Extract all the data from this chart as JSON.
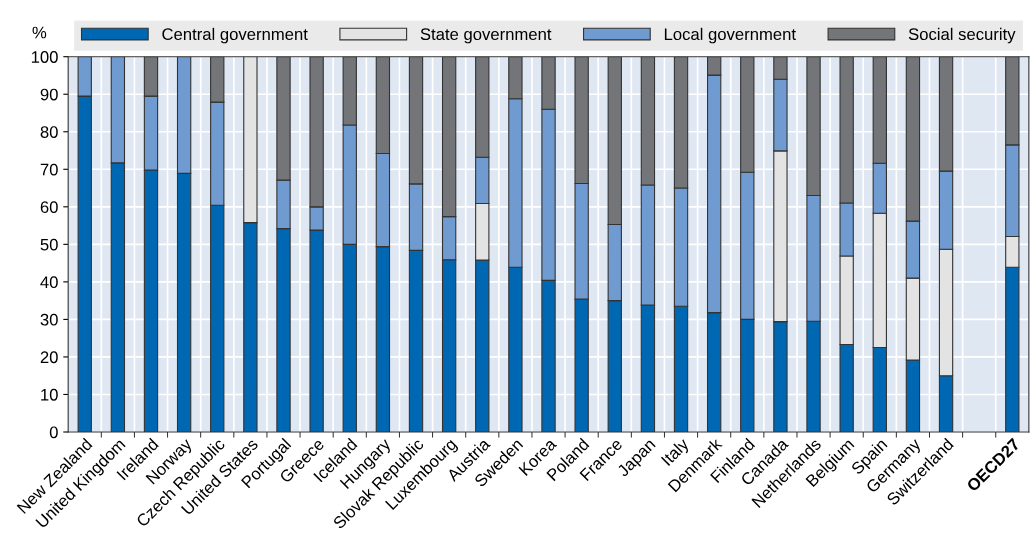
{
  "chart_data": {
    "type": "bar",
    "stacked": true,
    "ylabel": "%",
    "categories": [
      "New Zealand",
      "United Kingdom",
      "Ireland",
      "Norway",
      "Czech Republic",
      "United States",
      "Portugal",
      "Greece",
      "Iceland",
      "Hungary",
      "Slovak Republic",
      "Luxembourg",
      "Austria",
      "Sweden",
      "Korea",
      "Poland",
      "France",
      "Japan",
      "Italy",
      "Denmark",
      "Finland",
      "Canada",
      "Netherlands",
      "Belgium",
      "Spain",
      "Germany",
      "Switzerland",
      null,
      "OECD27"
    ],
    "series": [
      {
        "name": "Central government",
        "color": "#0068b3",
        "values": [
          89.5,
          71.7,
          69.8,
          68.9,
          60.4,
          55.8,
          54.2,
          53.8,
          50,
          49.4,
          48.4,
          45.9,
          45.8,
          43.9,
          40.4,
          35.4,
          35,
          33.8,
          33.5,
          31.8,
          30,
          29.4,
          29.5,
          23.3,
          22.5,
          19.2,
          15,
          null,
          43.9
        ]
      },
      {
        "name": "State government",
        "color": "#e3e3e3",
        "values": [
          0,
          0,
          0,
          0,
          0,
          44.2,
          0,
          0,
          0,
          0,
          0,
          0,
          15.1,
          0,
          0,
          0,
          0,
          0,
          0,
          0,
          0,
          45.5,
          0,
          23.6,
          35.8,
          21.8,
          33.7,
          null,
          8.2
        ]
      },
      {
        "name": "Local government",
        "color": "#6f9bd1",
        "values": [
          10.5,
          28.3,
          19.7,
          31.1,
          27.5,
          0,
          12.9,
          6.2,
          31.8,
          24.8,
          17.7,
          11.5,
          12.3,
          44.9,
          45.6,
          30.8,
          20.3,
          32,
          31.5,
          63.3,
          39.2,
          19.1,
          33.5,
          14.1,
          13.3,
          15.2,
          20.8,
          null,
          24.4
        ]
      },
      {
        "name": "Social security",
        "color": "#737579",
        "values": [
          0,
          0,
          10.5,
          0,
          12.1,
          0,
          32.9,
          40,
          18.2,
          25.8,
          33.9,
          42.6,
          26.8,
          11.2,
          14,
          33.8,
          44.7,
          34.2,
          35,
          4.9,
          30.8,
          6,
          37,
          39,
          28.4,
          43.8,
          30.5,
          null,
          23.5
        ]
      }
    ],
    "ylim": [
      0,
      100
    ],
    "yticks": [
      0,
      10,
      20,
      30,
      40,
      50,
      60,
      70,
      80,
      90,
      100
    ],
    "grid": true,
    "legend": "top"
  }
}
